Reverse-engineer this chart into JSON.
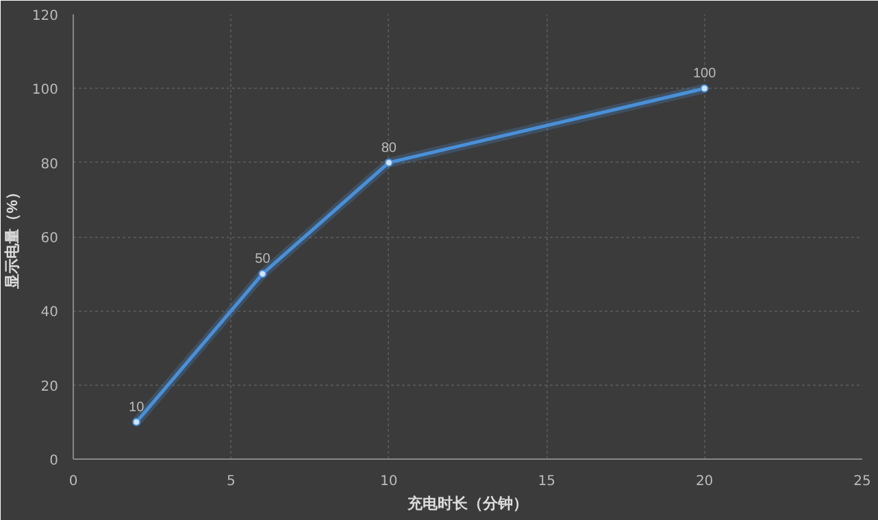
{
  "chart_data": {
    "type": "line",
    "xlabel": "充电时长（分钟）",
    "ylabel": "显示电量（%）",
    "x": [
      2,
      6,
      10,
      20
    ],
    "series": [
      {
        "color": "#4a90d9",
        "values": [
          10,
          50,
          80,
          100
        ]
      }
    ],
    "xlim": [
      0,
      25
    ],
    "xticks": [
      0,
      5,
      10,
      15,
      20,
      25
    ],
    "ylim": [
      0,
      120
    ],
    "yticks": [
      0,
      20,
      40,
      60,
      80,
      100,
      120
    ],
    "grid": true,
    "marker": "circle",
    "data_labels": true
  }
}
